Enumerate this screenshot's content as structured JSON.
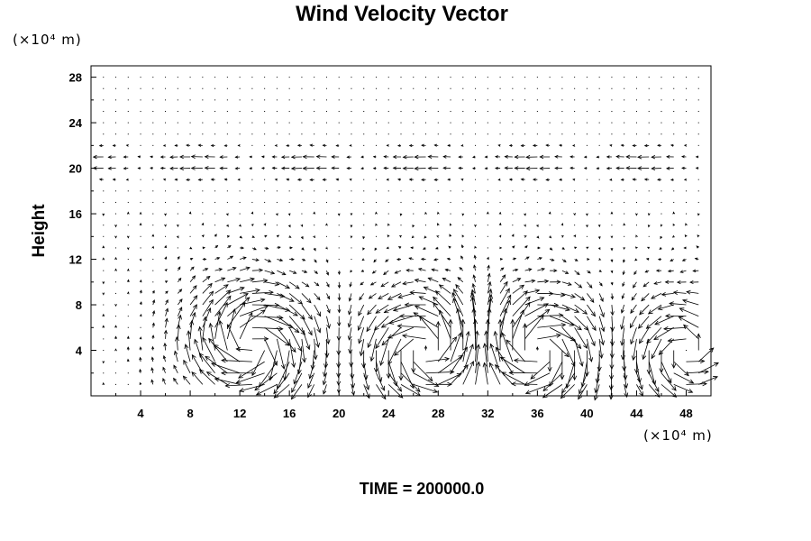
{
  "chart_data": {
    "type": "vector-field",
    "title": "Wind Velocity Vector",
    "ylabel": "Height",
    "xlabel": "",
    "x_unit": "(×10⁴ m)",
    "y_unit": "(×10⁴ m)",
    "footer": "TIME = 200000.0",
    "xlim": [
      0,
      50
    ],
    "ylim": [
      0,
      29
    ],
    "xticks": [
      4,
      8,
      12,
      16,
      20,
      24,
      28,
      32,
      36,
      40,
      44,
      48
    ],
    "yticks": [
      4,
      8,
      12,
      16,
      20,
      24,
      28
    ],
    "grid": false,
    "legend": "none",
    "vector_scale_note": "arrow components in x/y data units",
    "vortices": [
      {
        "cx": 13,
        "cy": 4.5,
        "strength": -1.0
      },
      {
        "cx": 27,
        "cy": 4.0,
        "strength": 0.9
      },
      {
        "cx": 36,
        "cy": 4.0,
        "strength": -0.9
      },
      {
        "cx": 48,
        "cy": 4.0,
        "strength": 0.7
      }
    ],
    "upper_jet": {
      "y_center": 20.5,
      "u": -0.7
    },
    "grid_x_start": 0,
    "grid_x_step": 1,
    "grid_y_start": 0,
    "grid_y_step": 1
  }
}
